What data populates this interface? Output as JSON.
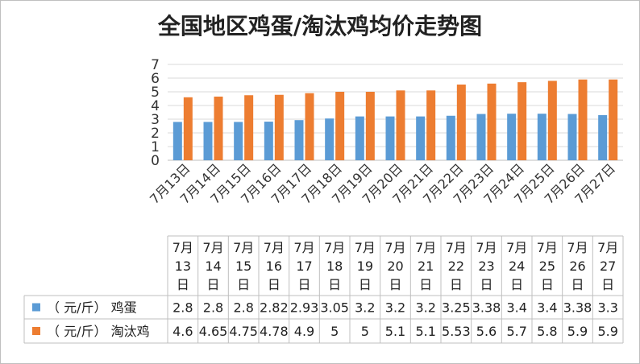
{
  "chart_data": {
    "type": "bar",
    "title": "全国地区鸡蛋/淘汰鸡均价走势图",
    "categories": [
      "7月13日",
      "7月14日",
      "7月15日",
      "7月16日",
      "7月17日",
      "7月18日",
      "7月19日",
      "7月20日",
      "7月21日",
      "7月22日",
      "7月23日",
      "7月24日",
      "7月25日",
      "7月26日",
      "7月27日"
    ],
    "table_headers": [
      [
        "7月",
        "13",
        "日"
      ],
      [
        "7月",
        "14",
        "日"
      ],
      [
        "7月",
        "15",
        "日"
      ],
      [
        "7月",
        "16",
        "日"
      ],
      [
        "7月",
        "17",
        "日"
      ],
      [
        "7月",
        "18",
        "日"
      ],
      [
        "7月",
        "19",
        "日"
      ],
      [
        "7月",
        "20",
        "日"
      ],
      [
        "7月",
        "21",
        "日"
      ],
      [
        "7月",
        "22",
        "日"
      ],
      [
        "7月",
        "23",
        "日"
      ],
      [
        "7月",
        "24",
        "日"
      ],
      [
        "7月",
        "25",
        "日"
      ],
      [
        "7月",
        "26",
        "日"
      ],
      [
        "7月",
        "27",
        "日"
      ]
    ],
    "series": [
      {
        "name": "（ 元/斤） 鸡蛋",
        "color": "#5b9bd5",
        "values": [
          2.8,
          2.8,
          2.8,
          2.82,
          2.93,
          3.05,
          3.2,
          3.2,
          3.2,
          3.25,
          3.38,
          3.4,
          3.4,
          3.38,
          3.3
        ],
        "labels": [
          "2.8",
          "2.8",
          "2.8",
          "2.82",
          "2.93",
          "3.05",
          "3.2",
          "3.2",
          "3.2",
          "3.25",
          "3.38",
          "3.4",
          "3.4",
          "3.38",
          "3.3"
        ]
      },
      {
        "name": "（ 元/斤） 淘汰鸡",
        "color": "#ed7d31",
        "values": [
          4.6,
          4.65,
          4.75,
          4.78,
          4.9,
          5,
          5,
          5.1,
          5.1,
          5.53,
          5.6,
          5.7,
          5.8,
          5.9,
          5.9
        ],
        "labels": [
          "4.6",
          "4.65",
          "4.75",
          "4.78",
          "4.9",
          "5",
          "5",
          "5.1",
          "5.1",
          "5.53",
          "5.6",
          "5.7",
          "5.8",
          "5.9",
          "5.9"
        ]
      }
    ],
    "ylim": [
      0,
      7
    ],
    "yticks": [
      "0",
      "1",
      "2",
      "3",
      "4",
      "5",
      "6",
      "7"
    ],
    "grid": true,
    "legend": "data-table"
  }
}
